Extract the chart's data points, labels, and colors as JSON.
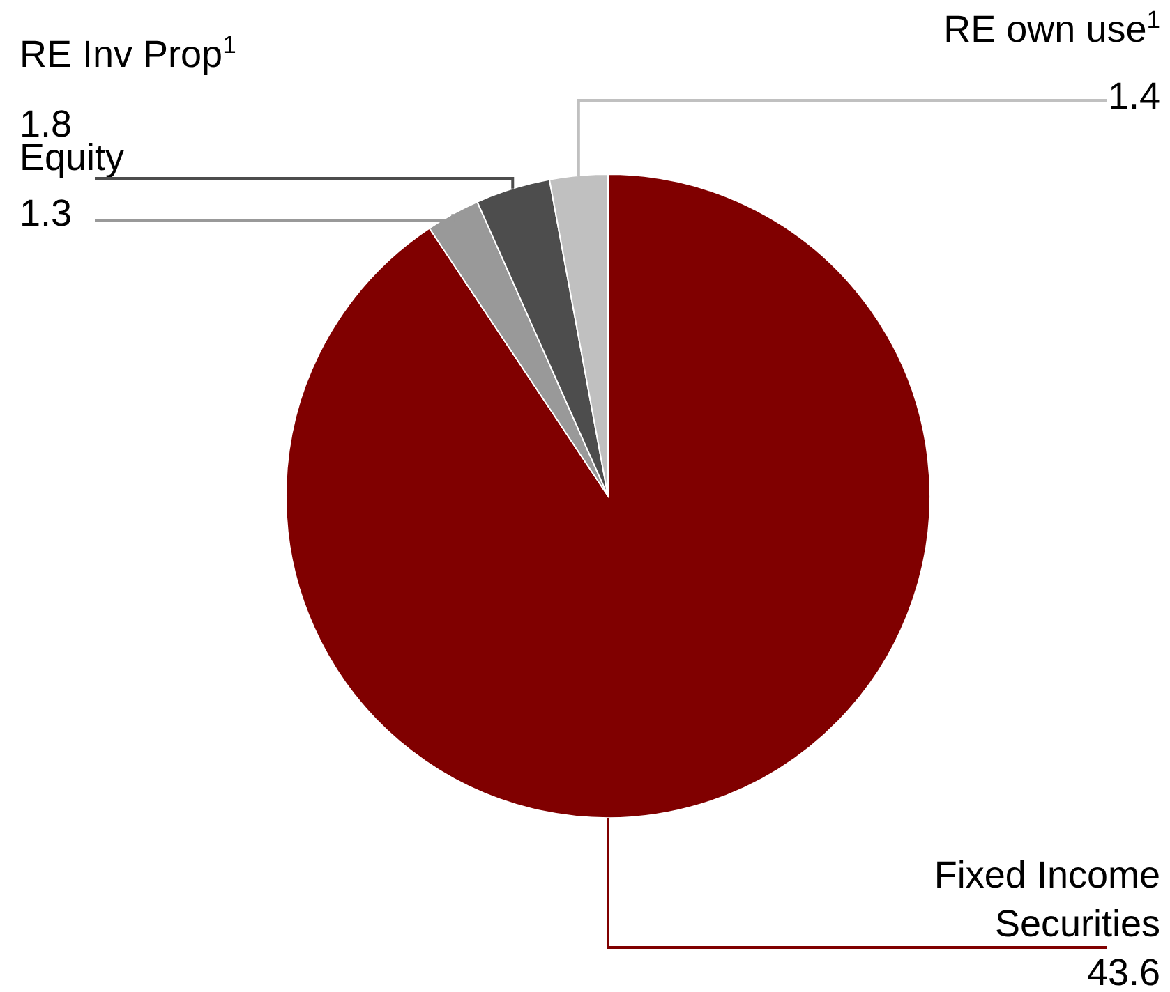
{
  "chart_data": {
    "type": "pie",
    "categories": [
      "Fixed Income Securities",
      "Equity",
      "RE Inv Prop$^{1}$",
      "RE own use$^{1}$"
    ],
    "values": [
      43.6,
      1.3,
      1.8,
      1.4
    ],
    "colors": [
      "#800000",
      "#999999",
      "#4d4d4d",
      "#c0c0c0"
    ],
    "data_labels": true
  }
}
